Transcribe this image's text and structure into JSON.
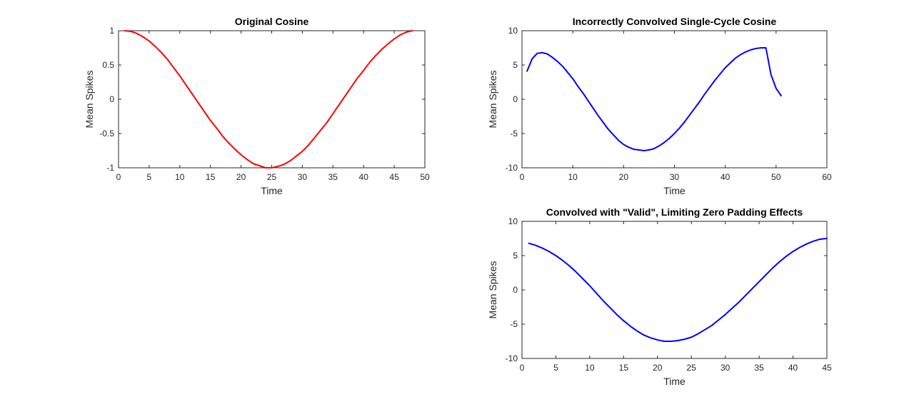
{
  "chart_data": [
    {
      "type": "line",
      "title": "Original Cosine",
      "xlabel": "Time",
      "ylabel": "Mean Spikes",
      "xlim": [
        0,
        50
      ],
      "ylim": [
        -1,
        1
      ],
      "xticks": [
        0,
        5,
        10,
        15,
        20,
        25,
        30,
        35,
        40,
        45,
        50
      ],
      "xtick_labels": [
        "0",
        "5",
        "10",
        "15",
        "20",
        "25",
        "30",
        "35",
        "40",
        "45",
        "50"
      ],
      "yticks": [
        -1,
        -0.5,
        0,
        0.5,
        1
      ],
      "ytick_labels": [
        "-1",
        "-0.5",
        "0",
        "0.5",
        "1"
      ],
      "grid": false,
      "series": [
        {
          "color": "#ff0000",
          "x": [
            1,
            2,
            3,
            4,
            5,
            6,
            7,
            8,
            9,
            10,
            11,
            12,
            13,
            14,
            15,
            16,
            17,
            18,
            19,
            20,
            21,
            22,
            23,
            24,
            25,
            26,
            27,
            28,
            29,
            30,
            31,
            32,
            33,
            34,
            35,
            36,
            37,
            38,
            39,
            40,
            41,
            42,
            43,
            44,
            45,
            46,
            47,
            48
          ],
          "y": [
            1.0,
            0.99,
            0.96,
            0.91,
            0.85,
            0.77,
            0.68,
            0.58,
            0.46,
            0.34,
            0.21,
            0.08,
            -0.05,
            -0.18,
            -0.31,
            -0.42,
            -0.54,
            -0.64,
            -0.73,
            -0.81,
            -0.88,
            -0.94,
            -0.97,
            -1.0,
            -1.0,
            -0.98,
            -0.95,
            -0.9,
            -0.83,
            -0.76,
            -0.67,
            -0.56,
            -0.45,
            -0.34,
            -0.21,
            -0.08,
            0.05,
            0.18,
            0.31,
            0.42,
            0.54,
            0.64,
            0.73,
            0.81,
            0.88,
            0.94,
            0.98,
            1.0
          ]
        }
      ]
    },
    {
      "type": "line",
      "title": "Incorrectly Convolved Single-Cycle Cosine",
      "xlabel": "Time",
      "ylabel": "Mean Spikes",
      "xlim": [
        0,
        60
      ],
      "ylim": [
        -10,
        10
      ],
      "xticks": [
        0,
        10,
        20,
        30,
        40,
        50,
        60
      ],
      "xtick_labels": [
        "0",
        "10",
        "20",
        "30",
        "40",
        "50",
        "60"
      ],
      "yticks": [
        -10,
        -5,
        0,
        5,
        10
      ],
      "ytick_labels": [
        "-10",
        "-5",
        "0",
        "5",
        "10"
      ],
      "grid": false,
      "series": [
        {
          "color": "#0000ff",
          "x": [
            1,
            2,
            3,
            4,
            5,
            6,
            7,
            8,
            9,
            10,
            11,
            12,
            13,
            14,
            15,
            16,
            17,
            18,
            19,
            20,
            21,
            22,
            23,
            24,
            25,
            26,
            27,
            28,
            29,
            30,
            31,
            32,
            33,
            34,
            35,
            36,
            37,
            38,
            39,
            40,
            41,
            42,
            43,
            44,
            45,
            46,
            47,
            48,
            49,
            50,
            51
          ],
          "y": [
            4.1,
            5.9,
            6.7,
            6.8,
            6.6,
            6.1,
            5.5,
            4.8,
            3.9,
            3.0,
            1.9,
            0.9,
            -0.2,
            -1.3,
            -2.4,
            -3.4,
            -4.4,
            -5.2,
            -6.0,
            -6.6,
            -7.0,
            -7.3,
            -7.4,
            -7.5,
            -7.4,
            -7.2,
            -6.8,
            -6.3,
            -5.7,
            -5.0,
            -4.2,
            -3.3,
            -2.3,
            -1.3,
            -0.3,
            0.8,
            1.8,
            2.8,
            3.7,
            4.6,
            5.3,
            6.0,
            6.5,
            6.9,
            7.2,
            7.4,
            7.5,
            7.5,
            3.6,
            1.6,
            0.5
          ]
        }
      ]
    },
    {
      "type": "line",
      "title": "Convolved with \"Valid\", Limiting Zero Padding Effects",
      "xlabel": "Time",
      "ylabel": "Mean Spikes",
      "xlim": [
        0,
        45
      ],
      "ylim": [
        -10,
        10
      ],
      "xticks": [
        0,
        5,
        10,
        15,
        20,
        25,
        30,
        35,
        40,
        45
      ],
      "xtick_labels": [
        "0",
        "5",
        "10",
        "15",
        "20",
        "25",
        "30",
        "35",
        "40",
        "45"
      ],
      "yticks": [
        -10,
        -5,
        0,
        5,
        10
      ],
      "ytick_labels": [
        "-10",
        "-5",
        "0",
        "5",
        "10"
      ],
      "grid": false,
      "series": [
        {
          "color": "#0000ff",
          "x": [
            1,
            2,
            3,
            4,
            5,
            6,
            7,
            8,
            9,
            10,
            11,
            12,
            13,
            14,
            15,
            16,
            17,
            18,
            19,
            20,
            21,
            22,
            23,
            24,
            25,
            26,
            27,
            28,
            29,
            30,
            31,
            32,
            33,
            34,
            35,
            36,
            37,
            38,
            39,
            40,
            41,
            42,
            43,
            44,
            45
          ],
          "y": [
            6.8,
            6.5,
            6.1,
            5.6,
            5.0,
            4.3,
            3.5,
            2.6,
            1.6,
            0.6,
            -0.5,
            -1.6,
            -2.6,
            -3.6,
            -4.5,
            -5.3,
            -6.0,
            -6.6,
            -7.0,
            -7.3,
            -7.5,
            -7.5,
            -7.4,
            -7.2,
            -6.9,
            -6.4,
            -5.8,
            -5.2,
            -4.4,
            -3.6,
            -2.7,
            -1.8,
            -0.8,
            0.2,
            1.2,
            2.2,
            3.2,
            4.1,
            4.9,
            5.6,
            6.2,
            6.7,
            7.1,
            7.4,
            7.5
          ]
        }
      ]
    }
  ]
}
